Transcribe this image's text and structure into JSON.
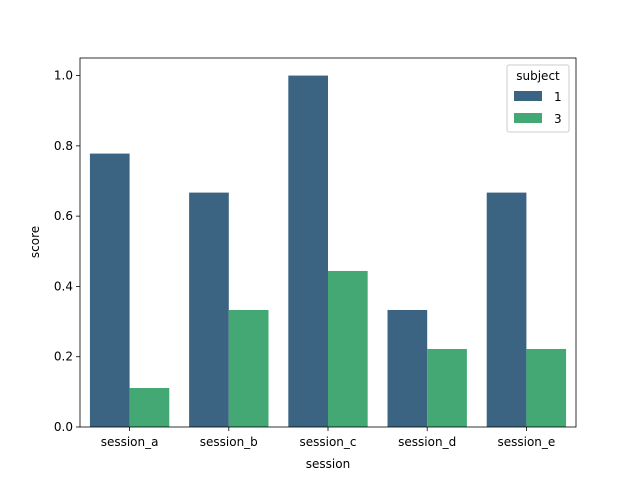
{
  "chart_data": {
    "type": "bar",
    "xlabel": "session",
    "ylabel": "score",
    "categories": [
      "session_a",
      "session_b",
      "session_c",
      "session_d",
      "session_e"
    ],
    "series": [
      {
        "name": "1",
        "color": "#3b6482",
        "values": [
          0.778,
          0.667,
          1.0,
          0.333,
          0.667
        ]
      },
      {
        "name": "3",
        "color": "#43a873",
        "values": [
          0.111,
          0.333,
          0.444,
          0.222,
          0.222
        ]
      }
    ],
    "ylim": [
      0,
      1.05
    ],
    "yticks": [
      "0.0",
      "0.2",
      "0.4",
      "0.6",
      "0.8",
      "1.0"
    ],
    "grid": false,
    "legend": {
      "title": "subject",
      "placement": "top-right"
    }
  }
}
